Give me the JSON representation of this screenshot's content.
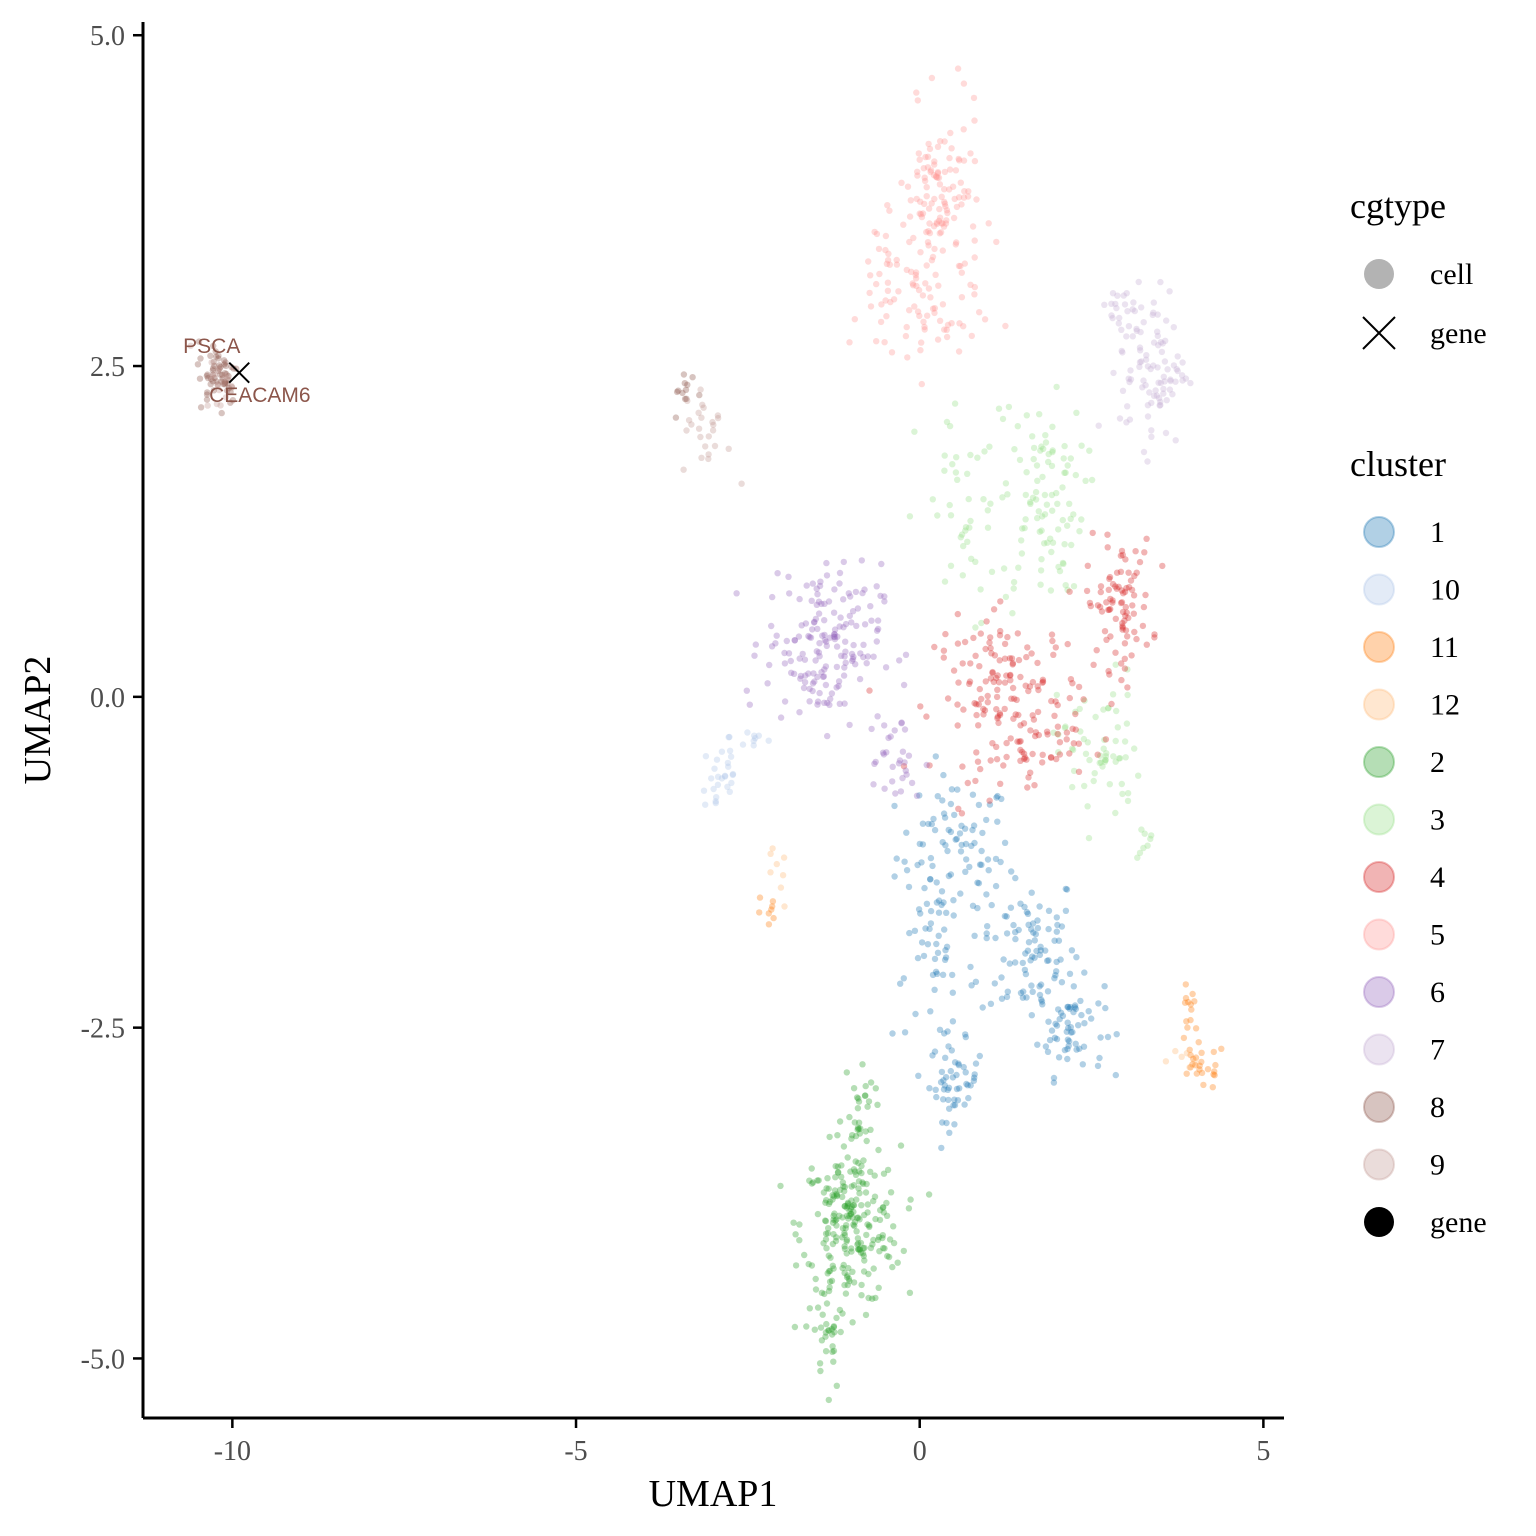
{
  "chart_data": {
    "type": "scatter",
    "title": "",
    "xlabel": "UMAP1",
    "ylabel": "UMAP2",
    "xlim": [
      -11.3,
      5.3
    ],
    "ylim": [
      -5.45,
      5.1
    ],
    "xticks": [
      -10,
      -5,
      0,
      5
    ],
    "xtick_labels": [
      "-10",
      "-5",
      "0",
      "5"
    ],
    "yticks": [
      -5.0,
      -2.5,
      0.0,
      2.5,
      5.0
    ],
    "ytick_labels": [
      "-5.0",
      "-2.5",
      "0.0",
      "2.5",
      "5.0"
    ],
    "grid": false,
    "legend_position": "right",
    "legends": [
      {
        "title": "cgtype",
        "entries": [
          {
            "label": "cell",
            "shape": "circle",
            "color": "#b3b3b3"
          },
          {
            "label": "gene",
            "shape": "x",
            "color": "#000000"
          }
        ]
      },
      {
        "title": "cluster",
        "entries": [
          {
            "label": "1",
            "color": "#1f77b4"
          },
          {
            "label": "10",
            "color": "#aec7e8"
          },
          {
            "label": "11",
            "color": "#ff7f0e"
          },
          {
            "label": "12",
            "color": "#ffbb78"
          },
          {
            "label": "2",
            "color": "#2ca02c"
          },
          {
            "label": "3",
            "color": "#98df8a"
          },
          {
            "label": "4",
            "color": "#d62728"
          },
          {
            "label": "5",
            "color": "#ff9896"
          },
          {
            "label": "6",
            "color": "#9467bd"
          },
          {
            "label": "7",
            "color": "#c5b0d5"
          },
          {
            "label": "8",
            "color": "#8c564b"
          },
          {
            "label": "9",
            "color": "#c49c94"
          },
          {
            "label": "gene",
            "color": "#000000"
          }
        ]
      }
    ],
    "series": [
      {
        "name": "1",
        "color": "#1f77b4",
        "regions": [
          {
            "center": [
              0.5,
              -1.2
            ],
            "spread": [
              0.7,
              0.5
            ],
            "n": 90
          },
          {
            "center": [
              1.6,
              -1.9
            ],
            "spread": [
              0.6,
              0.5
            ],
            "n": 90
          },
          {
            "center": [
              2.2,
              -2.5
            ],
            "spread": [
              0.4,
              0.3
            ],
            "n": 60
          },
          {
            "center": [
              0.5,
              -2.9
            ],
            "spread": [
              0.3,
              0.25
            ],
            "n": 50
          },
          {
            "center": [
              0.2,
              -2.1
            ],
            "spread": [
              0.5,
              0.4
            ],
            "n": 40
          }
        ]
      },
      {
        "name": "10",
        "color": "#aec7e8",
        "regions": [
          {
            "center": [
              -2.9,
              -0.6
            ],
            "spread": [
              0.25,
              0.3
            ],
            "n": 25
          },
          {
            "center": [
              -2.4,
              -0.3
            ],
            "spread": [
              0.3,
              0.1
            ],
            "n": 10
          }
        ]
      },
      {
        "name": "11",
        "color": "#ff7f0e",
        "regions": [
          {
            "center": [
              4.1,
              -2.8
            ],
            "spread": [
              0.3,
              0.15
            ],
            "n": 25
          },
          {
            "center": [
              3.9,
              -2.4
            ],
            "spread": [
              0.1,
              0.2
            ],
            "n": 12
          },
          {
            "center": [
              -2.2,
              -1.65
            ],
            "spread": [
              0.15,
              0.15
            ],
            "n": 8
          }
        ]
      },
      {
        "name": "12",
        "color": "#ffbb78",
        "regions": [
          {
            "center": [
              -2.1,
              -1.4
            ],
            "spread": [
              0.15,
              0.2
            ],
            "n": 8
          },
          {
            "center": [
              3.9,
              -2.7
            ],
            "spread": [
              0.2,
              0.1
            ],
            "n": 6
          }
        ]
      },
      {
        "name": "2",
        "color": "#2ca02c",
        "regions": [
          {
            "center": [
              -1.0,
              -4.0
            ],
            "spread": [
              0.6,
              0.5
            ],
            "n": 230
          },
          {
            "center": [
              -1.3,
              -4.8
            ],
            "spread": [
              0.2,
              0.3
            ],
            "n": 30
          },
          {
            "center": [
              -0.9,
              -3.1
            ],
            "spread": [
              0.2,
              0.3
            ],
            "n": 30
          }
        ]
      },
      {
        "name": "3",
        "color": "#98df8a",
        "regions": [
          {
            "center": [
              1.8,
              1.5
            ],
            "spread": [
              0.5,
              0.6
            ],
            "n": 90
          },
          {
            "center": [
              2.6,
              -0.4
            ],
            "spread": [
              0.5,
              0.5
            ],
            "n": 60
          },
          {
            "center": [
              0.8,
              1.3
            ],
            "spread": [
              0.7,
              0.8
            ],
            "n": 50
          },
          {
            "center": [
              3.3,
              -1.1
            ],
            "spread": [
              0.1,
              0.15
            ],
            "n": 8
          }
        ]
      },
      {
        "name": "4",
        "color": "#d62728",
        "regions": [
          {
            "center": [
              2.9,
              0.7
            ],
            "spread": [
              0.4,
              0.4
            ],
            "n": 90
          },
          {
            "center": [
              1.3,
              0.0
            ],
            "spread": [
              0.9,
              0.5
            ],
            "n": 150
          },
          {
            "center": [
              1.6,
              -0.4
            ],
            "spread": [
              0.6,
              0.2
            ],
            "n": 30
          }
        ]
      },
      {
        "name": "5",
        "color": "#ff9896",
        "regions": [
          {
            "center": [
              0.3,
              3.7
            ],
            "spread": [
              0.5,
              0.6
            ],
            "n": 130
          },
          {
            "center": [
              0.0,
              2.9
            ],
            "spread": [
              0.7,
              0.4
            ],
            "n": 60
          },
          {
            "center": [
              -0.6,
              3.2
            ],
            "spread": [
              0.2,
              0.2
            ],
            "n": 15
          }
        ]
      },
      {
        "name": "6",
        "color": "#9467bd",
        "regions": [
          {
            "center": [
              -1.4,
              0.4
            ],
            "spread": [
              0.7,
              0.5
            ],
            "n": 170
          },
          {
            "center": [
              -0.4,
              -0.5
            ],
            "spread": [
              0.4,
              0.3
            ],
            "n": 30
          }
        ]
      },
      {
        "name": "7",
        "color": "#c5b0d5",
        "regions": [
          {
            "center": [
              3.4,
              2.5
            ],
            "spread": [
              0.4,
              0.5
            ],
            "n": 90
          },
          {
            "center": [
              3.0,
              2.9
            ],
            "spread": [
              0.2,
              0.2
            ],
            "n": 20
          }
        ]
      },
      {
        "name": "8",
        "color": "#8c564b",
        "regions": [
          {
            "center": [
              -10.2,
              2.45
            ],
            "spread": [
              0.25,
              0.2
            ],
            "n": 60
          },
          {
            "center": [
              -3.4,
              2.3
            ],
            "spread": [
              0.15,
              0.15
            ],
            "n": 12
          }
        ]
      },
      {
        "name": "9",
        "color": "#c49c94",
        "regions": [
          {
            "center": [
              -3.1,
              2.0
            ],
            "spread": [
              0.3,
              0.3
            ],
            "n": 25
          },
          {
            "center": [
              -10.2,
              2.4
            ],
            "spread": [
              0.2,
              0.2
            ],
            "n": 15
          }
        ]
      }
    ],
    "genes": [
      {
        "label": "PSCA",
        "x": -9.9,
        "y": 2.45,
        "label_dx": -0.4,
        "label_dy": 0.15
      },
      {
        "label": "CEACAM6",
        "x": -9.9,
        "y": 2.45,
        "label_dx": 0.3,
        "label_dy": -0.22
      }
    ]
  }
}
